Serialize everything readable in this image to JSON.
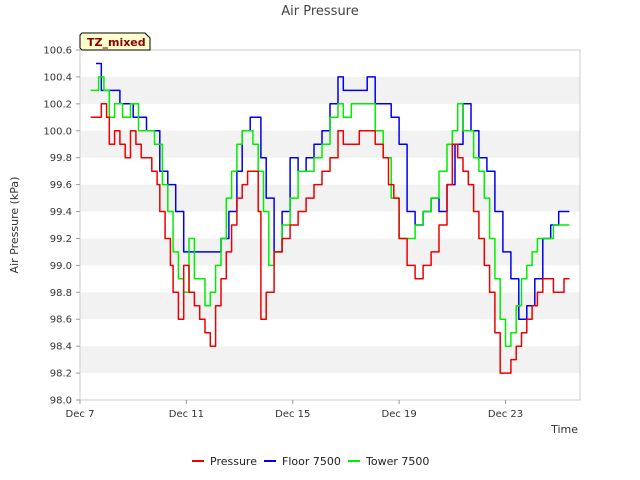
{
  "chart_data": {
    "type": "line",
    "title": "Air Pressure",
    "xlabel": "Time",
    "ylabel": "Air Pressure (kPa)",
    "badge": "TZ_mixed",
    "ylim": [
      98.0,
      100.6
    ],
    "xlim": [
      7,
      25.8
    ],
    "yticks": [
      98.0,
      98.2,
      98.4,
      98.6,
      98.8,
      99.0,
      99.2,
      99.4,
      99.6,
      99.8,
      100.0,
      100.2,
      100.4,
      100.6
    ],
    "ytick_labels": [
      "98.0",
      "98.2",
      "98.4",
      "98.6",
      "98.8",
      "99.0",
      "99.2",
      "99.4",
      "99.6",
      "99.8",
      "100.0",
      "100.2",
      "100.4",
      "100.6"
    ],
    "xticks": [
      7,
      11,
      15,
      19,
      23
    ],
    "xtick_labels": [
      "Dec 7",
      "Dec 11",
      "Dec 15",
      "Dec 19",
      "Dec 23"
    ],
    "grid": "horizontal-bands",
    "legend": "bottom-center",
    "series": [
      {
        "name": "Pressure",
        "color": "#ee0000",
        "x": [
          7.4,
          7.7,
          7.8,
          8.0,
          8.1,
          8.3,
          8.5,
          8.7,
          8.9,
          9.1,
          9.3,
          9.5,
          9.7,
          9.9,
          10.0,
          10.2,
          10.4,
          10.5,
          10.7,
          10.9,
          11.1,
          11.3,
          11.5,
          11.7,
          11.9,
          12.1,
          12.3,
          12.5,
          12.7,
          12.9,
          13.1,
          13.3,
          13.5,
          13.7,
          13.8,
          14.0,
          14.3,
          14.6,
          14.9,
          15.2,
          15.5,
          15.8,
          16.1,
          16.4,
          16.7,
          16.9,
          17.2,
          17.5,
          17.8,
          18.1,
          18.4,
          18.6,
          18.8,
          18.9,
          19.0,
          19.3,
          19.6,
          19.9,
          20.2,
          20.5,
          20.8,
          21.0,
          21.2,
          21.4,
          21.6,
          21.8,
          22.0,
          22.2,
          22.4,
          22.6,
          22.8,
          23.0,
          23.2,
          23.4,
          23.6,
          23.8,
          24.0,
          24.2,
          24.4,
          24.6,
          24.8,
          25.0,
          25.2,
          25.4
        ],
        "values": [
          100.1,
          100.1,
          100.2,
          100.1,
          99.9,
          100.0,
          99.9,
          99.8,
          100.0,
          99.9,
          99.8,
          99.8,
          99.7,
          99.6,
          99.4,
          99.2,
          99.0,
          98.8,
          98.6,
          99.0,
          98.8,
          98.7,
          98.6,
          98.5,
          98.4,
          98.7,
          98.9,
          99.1,
          99.3,
          99.5,
          99.6,
          99.7,
          99.7,
          99.4,
          98.6,
          98.8,
          99.1,
          99.2,
          99.3,
          99.4,
          99.5,
          99.6,
          99.7,
          99.8,
          100.0,
          99.9,
          99.9,
          100.0,
          100.0,
          99.9,
          99.8,
          99.6,
          99.5,
          99.5,
          99.2,
          99.0,
          98.9,
          99.0,
          99.1,
          99.3,
          99.6,
          99.9,
          99.8,
          99.7,
          99.6,
          99.4,
          99.2,
          99.0,
          98.8,
          98.5,
          98.2,
          98.2,
          98.3,
          98.4,
          98.5,
          98.6,
          98.7,
          98.8,
          98.9,
          98.9,
          98.8,
          98.8,
          98.9,
          98.9
        ]
      },
      {
        "name": "Floor 7500",
        "color": "#0000ee",
        "x": [
          7.6,
          7.8,
          8.0,
          8.5,
          9.0,
          9.5,
          10.0,
          10.3,
          10.6,
          10.9,
          11.2,
          11.5,
          11.8,
          12.1,
          12.3,
          12.6,
          12.9,
          13.1,
          13.4,
          13.6,
          13.8,
          14.0,
          14.3,
          14.6,
          14.9,
          15.2,
          15.5,
          15.8,
          16.1,
          16.4,
          16.7,
          16.9,
          17.2,
          17.5,
          17.8,
          18.1,
          18.4,
          18.7,
          19.0,
          19.3,
          19.6,
          19.9,
          20.2,
          20.5,
          20.8,
          21.1,
          21.4,
          21.7,
          22.0,
          22.3,
          22.6,
          22.9,
          23.2,
          23.5,
          23.8,
          24.1,
          24.4,
          24.7,
          25.0,
          25.2,
          25.4
        ],
        "values": [
          100.5,
          100.3,
          100.3,
          100.2,
          100.1,
          100.0,
          99.7,
          99.6,
          99.4,
          99.1,
          99.1,
          99.1,
          99.1,
          99.1,
          99.2,
          99.4,
          99.7,
          100.0,
          100.1,
          100.1,
          99.8,
          99.5,
          99.1,
          99.4,
          99.8,
          99.7,
          99.8,
          99.9,
          100.0,
          100.2,
          100.4,
          100.3,
          100.3,
          100.3,
          100.4,
          100.2,
          100.2,
          100.1,
          99.9,
          99.4,
          99.3,
          99.4,
          99.5,
          99.4,
          99.6,
          99.9,
          100.2,
          100.0,
          99.8,
          99.7,
          99.4,
          99.1,
          98.9,
          98.6,
          98.7,
          98.9,
          99.2,
          99.3,
          99.4,
          99.4,
          99.4
        ]
      },
      {
        "name": "Tower 7500",
        "color": "#00ee00",
        "x": [
          7.4,
          7.7,
          7.9,
          8.1,
          8.3,
          8.6,
          8.9,
          9.2,
          9.5,
          9.8,
          10.1,
          10.3,
          10.5,
          10.7,
          10.9,
          11.1,
          11.3,
          11.5,
          11.7,
          11.9,
          12.1,
          12.3,
          12.5,
          12.7,
          12.9,
          13.1,
          13.3,
          13.5,
          13.7,
          13.9,
          14.1,
          14.3,
          14.6,
          14.9,
          15.2,
          15.5,
          15.8,
          16.1,
          16.4,
          16.7,
          16.9,
          17.2,
          17.5,
          17.8,
          18.1,
          18.4,
          18.7,
          19.0,
          19.3,
          19.6,
          19.9,
          20.2,
          20.5,
          20.8,
          21.0,
          21.2,
          21.4,
          21.6,
          21.8,
          22.0,
          22.2,
          22.4,
          22.6,
          22.8,
          23.0,
          23.2,
          23.4,
          23.6,
          23.8,
          24.0,
          24.2,
          24.4,
          24.6,
          24.8,
          25.0,
          25.2,
          25.4
        ],
        "values": [
          100.3,
          100.4,
          100.3,
          100.1,
          100.2,
          100.1,
          100.2,
          100.0,
          100.0,
          99.9,
          99.6,
          99.4,
          99.1,
          98.9,
          98.8,
          99.2,
          98.9,
          98.9,
          98.7,
          98.8,
          99.0,
          99.2,
          99.5,
          99.7,
          99.9,
          100.0,
          100.0,
          99.9,
          99.7,
          99.4,
          99.0,
          99.1,
          99.3,
          99.5,
          99.7,
          99.7,
          99.8,
          99.9,
          100.1,
          100.2,
          100.1,
          100.2,
          100.2,
          100.2,
          100.0,
          99.8,
          99.5,
          99.2,
          99.2,
          99.3,
          99.4,
          99.5,
          99.7,
          99.9,
          100.0,
          100.2,
          100.0,
          100.0,
          99.8,
          99.7,
          99.5,
          99.2,
          98.9,
          98.6,
          98.4,
          98.5,
          98.7,
          98.9,
          99.0,
          99.1,
          99.2,
          99.2,
          99.2,
          99.3,
          99.3,
          99.3,
          99.3
        ]
      }
    ]
  }
}
